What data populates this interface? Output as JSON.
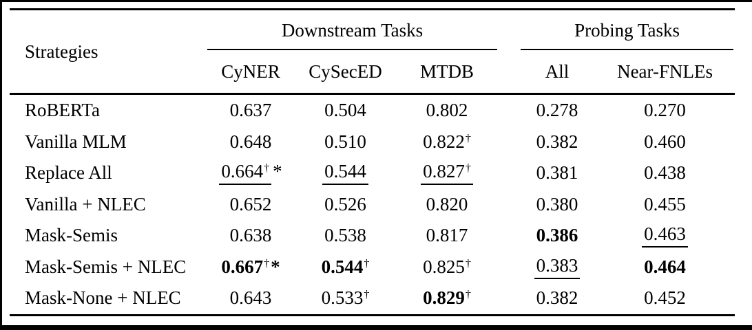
{
  "table": {
    "strategies_header": "Strategies",
    "groups": [
      {
        "label": "Downstream Tasks",
        "columns": [
          "CyNER",
          "CySecED",
          "MTDB"
        ]
      },
      {
        "label": "Probing Tasks",
        "columns": [
          "All",
          "Near-FNLEs"
        ]
      }
    ],
    "rows": [
      {
        "strategy": "RoBERTa",
        "cells": [
          {
            "text": "0.637"
          },
          {
            "text": "0.504"
          },
          {
            "text": "0.802"
          },
          {
            "text": "0.278"
          },
          {
            "text": "0.270"
          }
        ]
      },
      {
        "strategy": "Vanilla MLM",
        "cells": [
          {
            "text": "0.648"
          },
          {
            "text": "0.510"
          },
          {
            "text": "0.822",
            "sup": "†"
          },
          {
            "text": "0.382"
          },
          {
            "text": "0.460"
          }
        ]
      },
      {
        "strategy": "Replace All",
        "cells": [
          {
            "text": "0.664",
            "sup": "†",
            "after": "*",
            "underline": true
          },
          {
            "text": "0.544",
            "underline": true
          },
          {
            "text": "0.827",
            "sup": "†",
            "underline": true
          },
          {
            "text": "0.381"
          },
          {
            "text": "0.438"
          }
        ]
      },
      {
        "strategy": "Vanilla + NLEC",
        "cells": [
          {
            "text": "0.652"
          },
          {
            "text": "0.526"
          },
          {
            "text": "0.820"
          },
          {
            "text": "0.380"
          },
          {
            "text": "0.455"
          }
        ]
      },
      {
        "strategy": "Mask-Semis",
        "cells": [
          {
            "text": "0.638"
          },
          {
            "text": "0.538"
          },
          {
            "text": "0.817"
          },
          {
            "text": "0.386",
            "bold": true
          },
          {
            "text": "0.463",
            "underline": true
          }
        ]
      },
      {
        "strategy": "Mask-Semis + NLEC",
        "cells": [
          {
            "text": "0.667",
            "sup": "†",
            "after": "*",
            "bold": true
          },
          {
            "text": "0.544",
            "sup": "†",
            "bold": true
          },
          {
            "text": "0.825",
            "sup": "†"
          },
          {
            "text": "0.383",
            "underline": true
          },
          {
            "text": "0.464",
            "bold": true
          }
        ]
      },
      {
        "strategy": "Mask-None + NLEC",
        "cells": [
          {
            "text": "0.643"
          },
          {
            "text": "0.533",
            "sup": "†"
          },
          {
            "text": "0.829",
            "sup": "†",
            "bold": true
          },
          {
            "text": "0.382"
          },
          {
            "text": "0.452"
          }
        ]
      }
    ]
  }
}
